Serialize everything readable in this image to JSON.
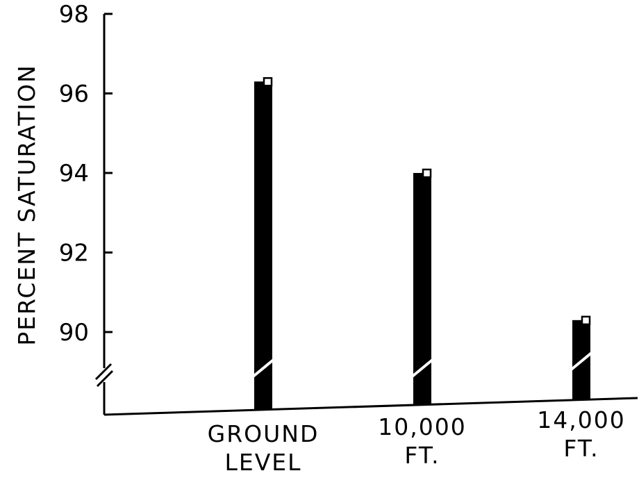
{
  "chart_data": {
    "type": "bar",
    "title": "",
    "xlabel": "",
    "ylabel": "PERCENT SATURATION",
    "ylim": [
      88,
      98
    ],
    "yticks": [
      90,
      92,
      94,
      96,
      98
    ],
    "axis_break": true,
    "grid": false,
    "categories": [
      [
        "GROUND",
        "LEVEL"
      ],
      [
        "10,000",
        "FT."
      ],
      [
        "14,000",
        "FT."
      ]
    ],
    "values": [
      96.3,
      94.0,
      90.3
    ],
    "colors": {
      "bar": "#000000",
      "marker": "#ffffff",
      "axis": "#000000"
    }
  }
}
